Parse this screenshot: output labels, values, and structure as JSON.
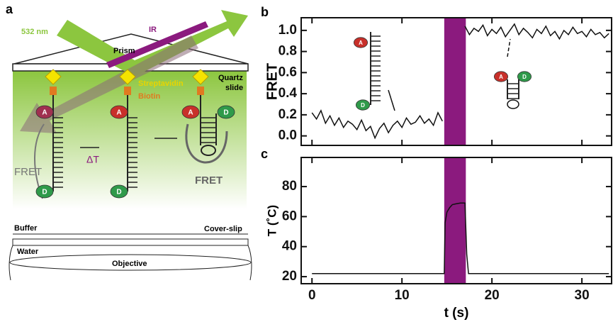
{
  "panel_labels": [
    "a",
    "b",
    "c"
  ],
  "diagram": {
    "beam_green": "532 nm",
    "beam_ir": "IR",
    "prism": "Prism",
    "streptavidin": "Streptavidin",
    "biotin": "Biotin",
    "quartz_slide": [
      "Quartz",
      "slide"
    ],
    "fret_left": "FRET",
    "delta_t": "ΔT",
    "fret_right": "FRET",
    "buffer": "Buffer",
    "cover_slip": "Cover-slip",
    "water": "Water",
    "objective": "Objective",
    "acceptor": "A",
    "donor": "D"
  },
  "chart_data": [
    {
      "type": "line",
      "ylabel": "FRET",
      "line_color": "#111111",
      "x": [
        0,
        0.5,
        1,
        1.5,
        2,
        2.5,
        3,
        3.5,
        4,
        4.5,
        5,
        5.5,
        6,
        6.5,
        7,
        7.5,
        8,
        8.5,
        9,
        9.5,
        10,
        10.5,
        11,
        11.5,
        12,
        12.5,
        13,
        13.5,
        14,
        14.5,
        16,
        17,
        17.5,
        18,
        18.5,
        19,
        19.5,
        20,
        20.5,
        21,
        21.5,
        22,
        22.5,
        23,
        23.5,
        24,
        24.5,
        25,
        25.5,
        26,
        26.5,
        27,
        27.5,
        28,
        28.5,
        29,
        29.5,
        30,
        30.5,
        31,
        31.5,
        32,
        32.5,
        33
      ],
      "values": [
        0.22,
        0.16,
        0.24,
        0.12,
        0.19,
        0.1,
        0.17,
        0.08,
        0.14,
        0.11,
        0.06,
        0.15,
        0.05,
        0.09,
        -0.02,
        0.07,
        0.12,
        0.03,
        0.1,
        0.14,
        0.08,
        0.17,
        0.11,
        0.13,
        0.19,
        0.12,
        0.16,
        0.1,
        0.22,
        0.14,
        null,
        1.04,
        0.96,
        1.02,
        0.99,
        1.05,
        0.95,
        1.01,
        0.97,
        1.03,
        0.94,
        1.0,
        1.06,
        0.96,
        1.02,
        0.98,
        0.93,
        1.01,
        0.97,
        1.04,
        0.95,
        0.99,
        0.92,
        1.0,
        0.96,
        1.03,
        0.97,
        0.99,
        0.94,
        1.01,
        0.96,
        0.98,
        0.93,
        0.97
      ],
      "span": [
        14.7,
        17.1
      ],
      "span_color": "#8b1a7e",
      "xlim": [
        -1.2,
        33.3
      ],
      "xticks": [
        0,
        10,
        20,
        30
      ],
      "show_xtick_labels": false,
      "ylim": [
        -0.09,
        1.12
      ],
      "yticks": [
        {
          "value": 0,
          "label": "0.0"
        },
        0.2,
        0.4,
        0.6,
        0.8,
        {
          "value": 1,
          "label": "1.0"
        }
      ]
    },
    {
      "type": "line",
      "ylabel": "T (˚C)",
      "xlabel": "t (s)",
      "line_color": "#111111",
      "x": [
        0,
        14.7,
        14.8,
        15,
        15.3,
        15.6,
        16,
        16.5,
        17.0,
        17.2,
        17.4,
        33
      ],
      "values": [
        22,
        22,
        56,
        63,
        66,
        68,
        68.5,
        69,
        69,
        35,
        22,
        22
      ],
      "span": [
        14.7,
        17.1
      ],
      "span_color": "#8b1a7e",
      "xlim": [
        -1.2,
        33.3
      ],
      "xticks": [
        0,
        10,
        20,
        30
      ],
      "show_xtick_labels": true,
      "ylim": [
        15.3,
        99.4
      ],
      "yticks": [
        20,
        40,
        60,
        80
      ]
    }
  ]
}
